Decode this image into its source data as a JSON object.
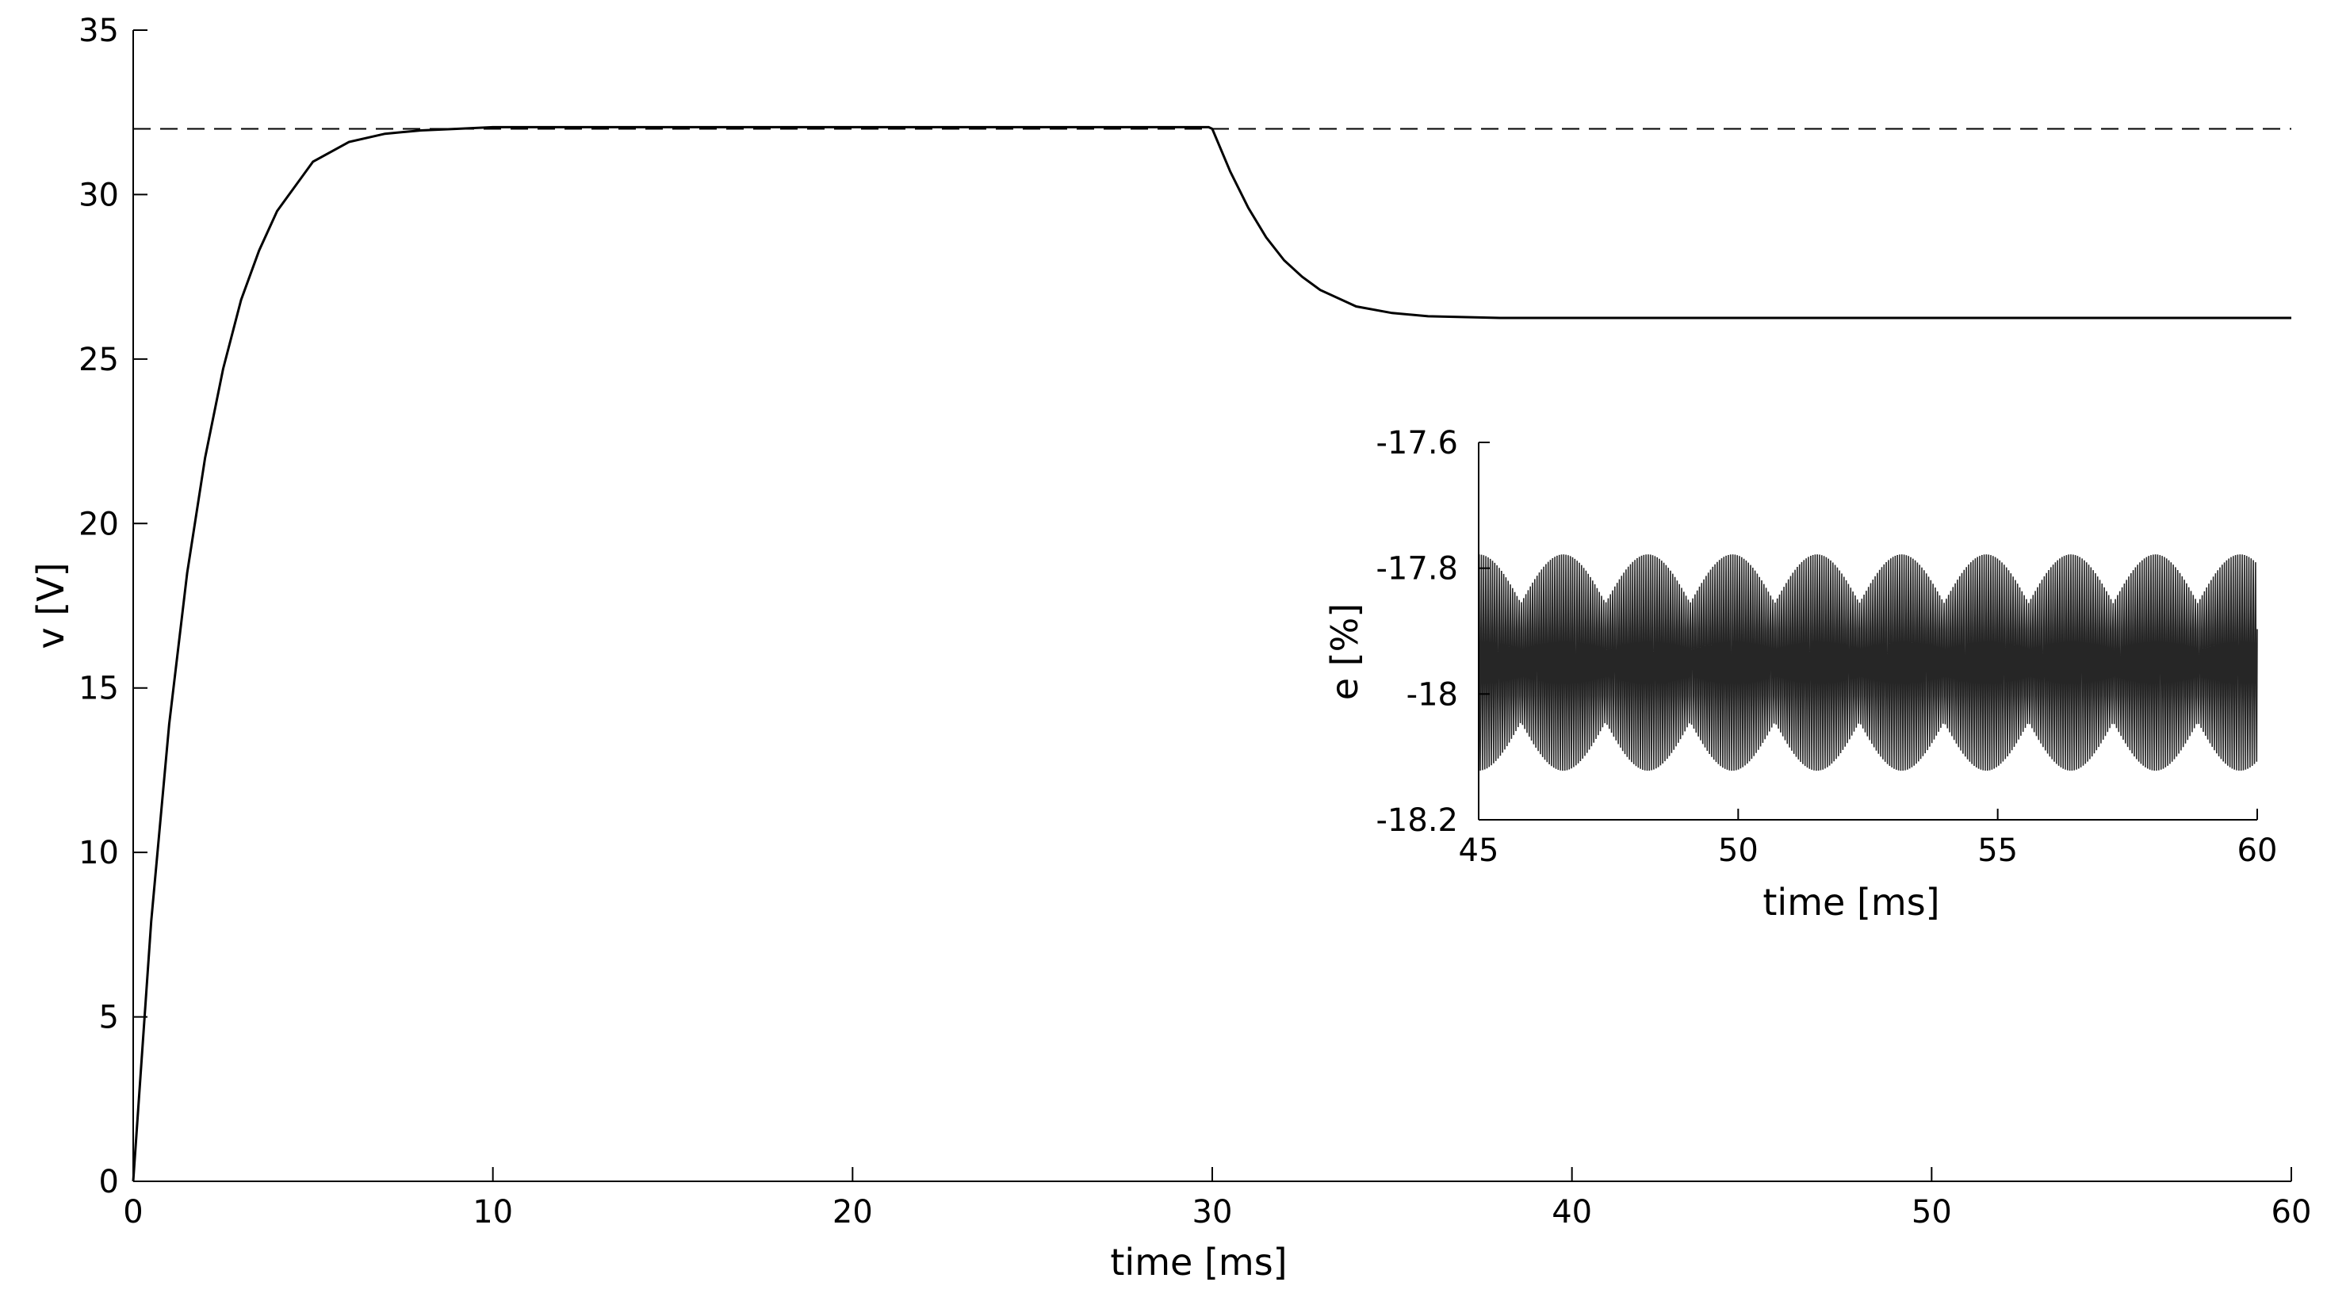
{
  "chart_data": [
    {
      "type": "line",
      "title": "",
      "xlabel": "time [ms]",
      "ylabel": "v [V]",
      "xlim": [
        0,
        60
      ],
      "ylim": [
        0,
        35
      ],
      "xticks": [
        "0",
        "10",
        "20",
        "30",
        "40",
        "50",
        "60"
      ],
      "yticks": [
        "0",
        "5",
        "10",
        "15",
        "20",
        "25",
        "30",
        "35"
      ],
      "grid": false,
      "series": [
        {
          "style": "solid",
          "x": [
            0,
            0.5,
            1,
            1.5,
            2,
            2.5,
            3,
            3.5,
            4,
            5,
            6,
            7,
            8,
            9,
            10,
            12,
            15,
            20,
            25,
            29.9,
            30,
            30.5,
            31,
            31.5,
            32,
            32.5,
            33,
            34,
            35,
            36,
            38,
            40,
            45,
            50,
            55,
            60
          ],
          "y": [
            0,
            7.9,
            13.9,
            18.5,
            22.0,
            24.7,
            26.8,
            28.3,
            29.5,
            31.0,
            31.6,
            31.85,
            31.95,
            32.0,
            32.05,
            32.05,
            32.05,
            32.05,
            32.05,
            32.05,
            32.0,
            30.7,
            29.6,
            28.7,
            28.0,
            27.5,
            27.1,
            26.6,
            26.4,
            26.3,
            26.25,
            26.25,
            26.25,
            26.25,
            26.25,
            26.25
          ]
        },
        {
          "style": "dashed",
          "x": [
            0,
            60
          ],
          "y": [
            32,
            32
          ]
        }
      ]
    },
    {
      "type": "line",
      "title": "",
      "xlabel": "time [ms]",
      "ylabel": "e [%]",
      "xlim": [
        45,
        60
      ],
      "ylim": [
        -18.2,
        -17.6
      ],
      "xticks": [
        "45",
        "50",
        "55",
        "60"
      ],
      "yticks": [
        "-17.6",
        "-17.8",
        "-18",
        "-18.2"
      ],
      "grid": false,
      "series": [
        {
          "style": "solid",
          "description_values": {
            "center": -17.95,
            "amplitude": 0.18,
            "x_start": 45,
            "x_end": 60
          }
        }
      ]
    }
  ]
}
